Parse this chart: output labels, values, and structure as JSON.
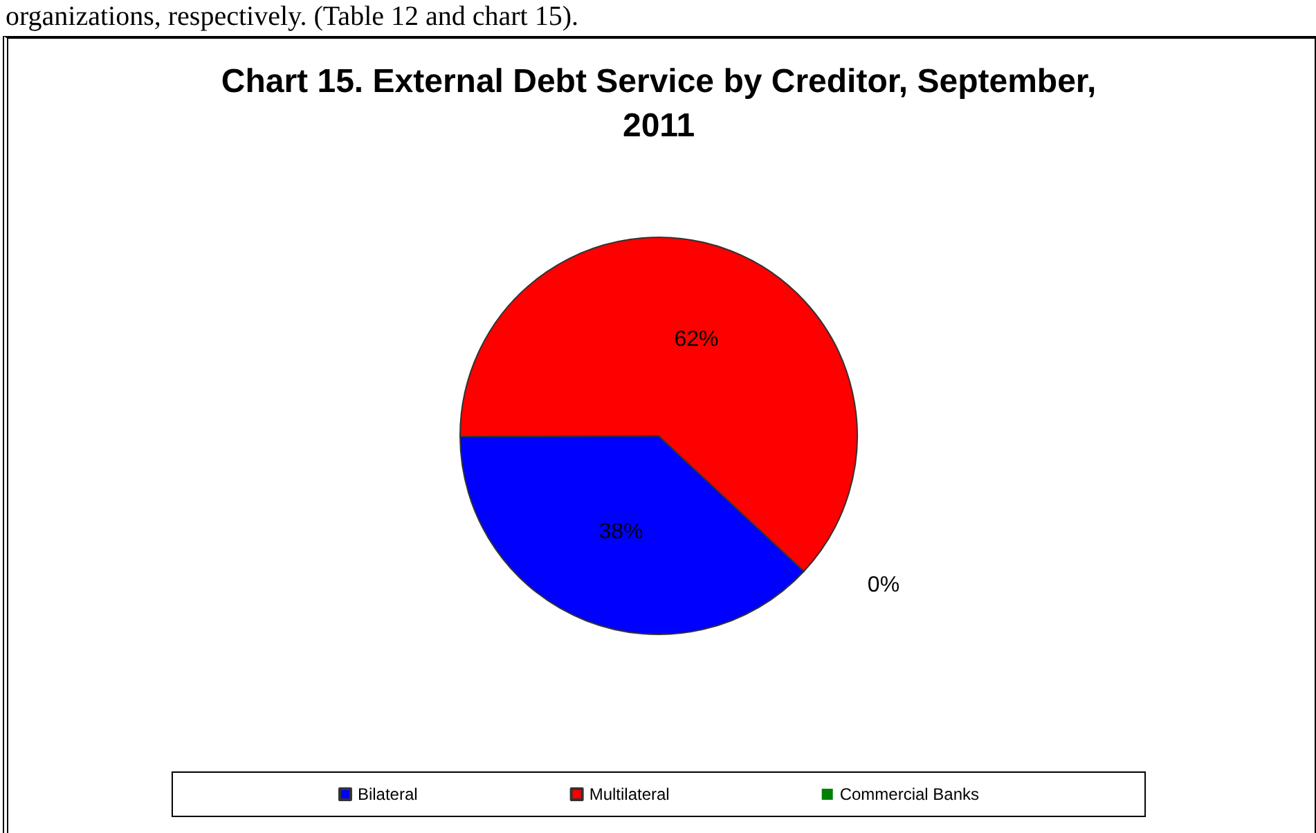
{
  "chart_data": {
    "type": "pie",
    "title": "Chart 15. External Debt Service by Creditor, September, 2011",
    "annotations": [
      "organizations, respectively. (Table 12 and chart 15)."
    ],
    "categories": [
      "Bilateral",
      "Multilateral",
      "Commercial Banks"
    ],
    "values": [
      38,
      62,
      0
    ],
    "colors": [
      "#0000ff",
      "#ff0000",
      "#008000"
    ],
    "value_labels": [
      "38%",
      "62%",
      "0%"
    ],
    "legend": "bottom"
  }
}
